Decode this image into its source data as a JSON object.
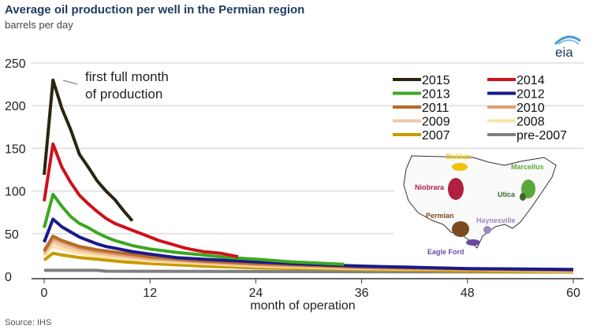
{
  "header": {
    "title": "Average oil production per well in the Permian region",
    "subtitle": "barrels per day",
    "logo": "eia"
  },
  "footer": {
    "source": "Source:  IHS"
  },
  "annotation": "first full month|of production",
  "map": {
    "labels": [
      "Bakken",
      "Marcellus",
      "Niobrara",
      "Utica",
      "Permian",
      "Haynesville",
      "Eagle Ford"
    ],
    "colors": {
      "Bakken": "#f2c200",
      "Marcellus": "#5aa83c",
      "Niobrara": "#b02040",
      "Utica": "#3a6a2a",
      "Permian": "#7a4a20",
      "Haynesville": "#9a8ac0",
      "Eagle Ford": "#6a4aa0"
    }
  },
  "chart_data": {
    "type": "line",
    "title": "Average oil production per well in the Permian region",
    "ylabel": "barrels per day",
    "xlabel": "month of operation",
    "xlim": [
      0,
      60
    ],
    "ylim": [
      0,
      250
    ],
    "xticks": [
      0,
      12,
      24,
      36,
      48,
      60
    ],
    "yticks": [
      0,
      50,
      100,
      150,
      200,
      250
    ],
    "grid": "horizontal",
    "legend": "top-right",
    "series": [
      {
        "name": "2015",
        "color": "#2b2410",
        "x": [
          0,
          1,
          2,
          3,
          4,
          5,
          6,
          7,
          8,
          9,
          10
        ],
        "y": [
          119,
          230,
          197,
          172,
          143,
          128,
          112,
          100,
          90,
          77,
          65
        ]
      },
      {
        "name": "2014",
        "color": "#d0101a",
        "x": [
          0,
          1,
          2,
          3,
          4,
          5,
          6,
          7,
          8,
          9,
          10,
          11,
          12,
          13,
          14,
          15,
          16,
          17,
          18,
          19,
          20,
          21,
          22
        ],
        "y": [
          88,
          155,
          128,
          110,
          95,
          85,
          76,
          68,
          62,
          58,
          54,
          50,
          46,
          42,
          39,
          36,
          33,
          31,
          29,
          28,
          27,
          25,
          23
        ]
      },
      {
        "name": "2013",
        "color": "#3aa820",
        "x": [
          0,
          1,
          2,
          3,
          4,
          5,
          6,
          7,
          8,
          9,
          10,
          12,
          15,
          18,
          21,
          24,
          28,
          32,
          34
        ],
        "y": [
          57,
          96,
          82,
          70,
          62,
          57,
          51,
          46,
          42,
          39,
          36,
          32,
          28,
          25,
          22,
          20,
          17,
          15,
          14
        ]
      },
      {
        "name": "2012",
        "color": "#1a1a8a",
        "x": [
          0,
          1,
          2,
          3,
          4,
          5,
          6,
          7,
          8,
          9,
          10,
          12,
          15,
          18,
          24,
          30,
          36,
          48,
          60
        ],
        "y": [
          40,
          67,
          58,
          52,
          46,
          42,
          38,
          35,
          33,
          31,
          29,
          26,
          22,
          20,
          17,
          14,
          12,
          9,
          8
        ]
      },
      {
        "name": "2011",
        "color": "#b86a2a",
        "x": [
          0,
          1,
          2,
          4,
          6,
          9,
          12,
          18,
          24,
          36,
          48,
          60
        ],
        "y": [
          30,
          47,
          42,
          35,
          31,
          27,
          23,
          18,
          15,
          11,
          9,
          7
        ]
      },
      {
        "name": "2010",
        "color": "#e0a070",
        "x": [
          0,
          1,
          2,
          4,
          6,
          9,
          12,
          18,
          24,
          36,
          48,
          60
        ],
        "y": [
          28,
          44,
          40,
          33,
          29,
          25,
          21,
          17,
          14,
          10,
          8,
          7
        ]
      },
      {
        "name": "2009",
        "color": "#f0c8a8",
        "x": [
          0,
          1,
          2,
          4,
          6,
          9,
          12,
          18,
          24,
          36,
          48,
          60
        ],
        "y": [
          26,
          40,
          36,
          30,
          27,
          23,
          20,
          16,
          13,
          10,
          8,
          7
        ]
      },
      {
        "name": "2008",
        "color": "#fae4a8",
        "x": [
          0,
          1,
          2,
          4,
          6,
          9,
          12,
          18,
          24,
          36,
          48,
          60
        ],
        "y": [
          24,
          35,
          32,
          27,
          24,
          21,
          18,
          15,
          12,
          9,
          8,
          6
        ]
      },
      {
        "name": "2007",
        "color": "#c89a00",
        "x": [
          0,
          1,
          2,
          4,
          6,
          9,
          12,
          18,
          24,
          36,
          48,
          60
        ],
        "y": [
          19,
          27,
          25,
          22,
          20,
          17,
          15,
          12,
          10,
          8,
          6,
          5
        ]
      },
      {
        "name": "pre-2007",
        "color": "#808080",
        "x": [
          0,
          1,
          6,
          7,
          60
        ],
        "y": [
          7,
          7,
          7,
          6,
          5
        ]
      }
    ]
  }
}
